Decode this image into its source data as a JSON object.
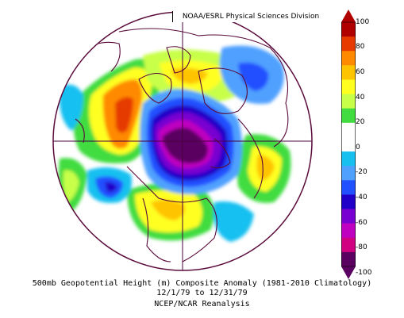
{
  "attribution": "NOAA/ESRL Physical Sciences Division",
  "caption": {
    "line1": "500mb Geopotential Height (m) Composite Anomaly (1981-2010 Climatology)",
    "line2": "12/1/79  to 12/31/79",
    "line3": "NCEP/NCAR Reanalysis"
  },
  "colorbar": {
    "labels": [
      "100",
      "80",
      "60",
      "40",
      "20",
      "0",
      "-20",
      "-40",
      "-60",
      "-80",
      "-100"
    ],
    "colors": [
      "#b00000",
      "#e63a00",
      "#ff8a00",
      "#ffc400",
      "#ffff20",
      "#c8ff48",
      "#40dc40",
      "#ffffff",
      "#ffffff",
      "#18c0f0",
      "#50a0ff",
      "#2050ff",
      "#2000c8",
      "#7800d0",
      "#c000c0",
      "#d00080",
      "#5a0060"
    ]
  },
  "map": {
    "projection": "polar-stereographic",
    "background_color": "#ffffff",
    "grid_color": "#4a0040",
    "land_outline_color": "#5a0a3a"
  }
}
